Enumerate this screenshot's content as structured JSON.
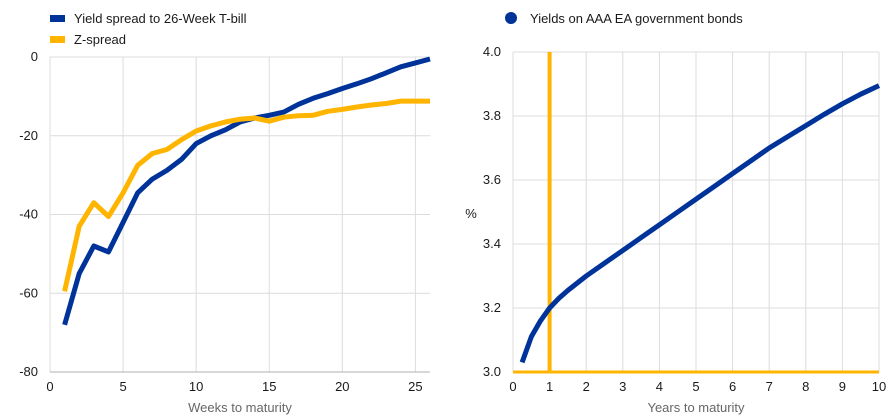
{
  "chart_data": [
    {
      "type": "line",
      "xlabel": "Weeks to maturity",
      "ylabel": "",
      "xlim": [
        0,
        26
      ],
      "ylim": [
        -80,
        0
      ],
      "xticks": [
        0,
        5,
        10,
        15,
        20,
        25
      ],
      "yticks": [
        0,
        -20,
        -40,
        -60,
        -80
      ],
      "grid": true,
      "legend_position": "top-left",
      "series": [
        {
          "name": "Yield spread to 26-Week T-bill",
          "color": "#003399",
          "x": [
            1,
            2,
            3,
            4,
            5,
            6,
            7,
            8,
            9,
            10,
            11,
            12,
            13,
            14,
            15,
            16,
            17,
            18,
            19,
            20,
            21,
            22,
            23,
            24,
            25,
            26
          ],
          "y": [
            -68,
            -55,
            -48,
            -49.5,
            -42,
            -34.5,
            -31,
            -28.8,
            -26,
            -22,
            -20,
            -18.5,
            -16.5,
            -15.5,
            -14.8,
            -14,
            -12,
            -10.5,
            -9.3,
            -8,
            -6.8,
            -5.5,
            -4,
            -2.5,
            -1.5,
            -0.5
          ]
        },
        {
          "name": "Z-spread",
          "color": "#FFB400",
          "x": [
            1,
            2,
            3,
            4,
            5,
            6,
            7,
            8,
            9,
            10,
            11,
            12,
            13,
            14,
            15,
            16,
            17,
            18,
            19,
            20,
            21,
            22,
            23,
            24,
            25,
            26
          ],
          "y": [
            -59.5,
            -43,
            -37,
            -40.5,
            -34.5,
            -27.5,
            -24.5,
            -23.5,
            -21,
            -18.8,
            -17.5,
            -16.5,
            -15.8,
            -15.5,
            -16.3,
            -15.3,
            -14.9,
            -14.8,
            -13.8,
            -13.3,
            -12.7,
            -12.2,
            -11.8,
            -11.2,
            -11.2,
            -11.2
          ]
        }
      ]
    },
    {
      "type": "line",
      "xlabel": "Years to maturity",
      "ylabel": "%",
      "xlim": [
        0,
        10
      ],
      "ylim": [
        3.0,
        4.0
      ],
      "xticks": [
        0,
        1,
        2,
        3,
        4,
        5,
        6,
        7,
        8,
        9,
        10
      ],
      "yticks": [
        3.0,
        3.2,
        3.4,
        3.6,
        3.8,
        4.0
      ],
      "grid": true,
      "legend_position": "top-left",
      "vertical_marker_x": 1,
      "marker_color": "#FFB400",
      "series": [
        {
          "name": "Yields on AAA EA government bonds",
          "color": "#003399",
          "x": [
            0.25,
            0.5,
            0.75,
            1,
            1.25,
            1.5,
            2,
            2.5,
            3,
            3.5,
            4,
            4.5,
            5,
            5.5,
            6,
            6.5,
            7,
            7.5,
            8,
            8.5,
            9,
            9.5,
            10
          ],
          "y": [
            3.03,
            3.11,
            3.16,
            3.2,
            3.23,
            3.255,
            3.3,
            3.34,
            3.38,
            3.42,
            3.46,
            3.5,
            3.54,
            3.58,
            3.62,
            3.66,
            3.7,
            3.735,
            3.77,
            3.805,
            3.838,
            3.868,
            3.895
          ]
        }
      ]
    }
  ]
}
